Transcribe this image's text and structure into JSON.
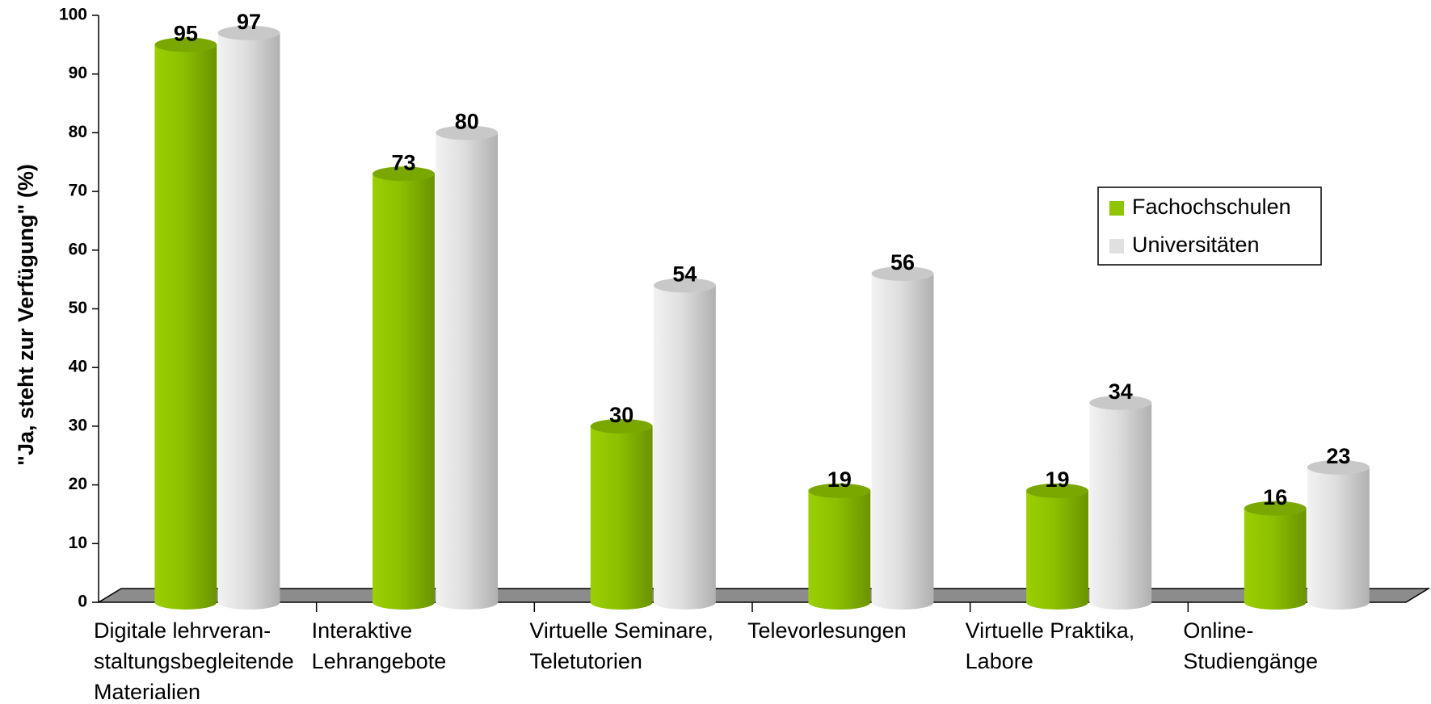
{
  "chart_data": {
    "type": "bar3d",
    "y_label": "\"Ja, steht zur Verfügung\" (%)",
    "categories": [
      [
        "Digitale lehrveran-",
        "staltungsbegleitende",
        "Materialien"
      ],
      [
        "Interaktive",
        "Lehrangebote"
      ],
      [
        "Virtuelle Seminare,",
        "Teletutorien"
      ],
      [
        "Televorlesungen"
      ],
      [
        "Virtuelle Praktika,",
        "Labore"
      ],
      [
        "Online-",
        "Studiengänge"
      ]
    ],
    "series": [
      {
        "name": "Fachochschulen",
        "color": "#8fc400",
        "values": [
          95,
          73,
          30,
          19,
          19,
          16
        ]
      },
      {
        "name": "Universitäten",
        "color": "#e0e0e0",
        "values": [
          97,
          80,
          54,
          56,
          34,
          23
        ]
      }
    ],
    "ylim": [
      0,
      100
    ],
    "yticks": [
      0,
      10,
      20,
      30,
      40,
      50,
      60,
      70,
      80,
      90,
      100
    ],
    "legend": "right"
  }
}
